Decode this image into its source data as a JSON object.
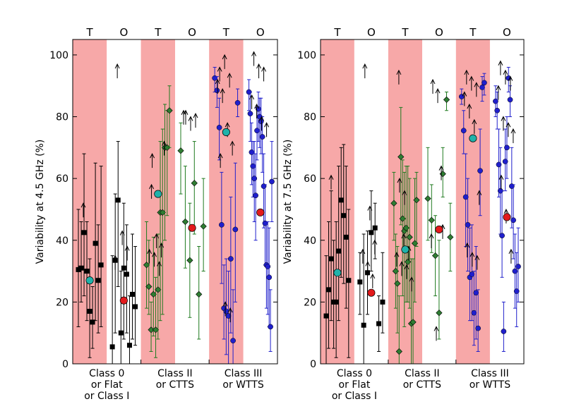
{
  "colors": {
    "shade": "#f7a8a8",
    "class0": "#000000",
    "class2": "#1f7a1f",
    "class2_marker": "#2e7d32",
    "class3": "#1f1fcc",
    "mean_class0": "#e31a1c",
    "mean_t": "#20b2aa",
    "arrow": "#000000"
  },
  "chart_data": [
    {
      "type": "scatter",
      "panel": "left",
      "ylabel": "Variability at 4.5 GHz (%)",
      "ylim": [
        0,
        105
      ],
      "yticks": [
        0,
        20,
        40,
        60,
        80,
        100
      ],
      "top_labels": [
        "T",
        "O",
        "T",
        "O",
        "T",
        "O"
      ],
      "groups": [
        {
          "label_lines": [
            "Class 0",
            "or Flat",
            "or Class I"
          ],
          "color_key": "class0",
          "marker": "square",
          "T_points": [
            {
              "y": 30.5,
              "lo": 12,
              "hi": 50
            },
            {
              "y": 31,
              "lo": 20,
              "hi": 46
            },
            {
              "y": 42.5,
              "lo": 22,
              "hi": 68
            },
            {
              "y": 30,
              "lo": 14,
              "hi": 46
            },
            {
              "y": 17,
              "lo": 2,
              "hi": 34
            },
            {
              "y": 13.5,
              "lo": 5,
              "hi": 25
            },
            {
              "y": 39,
              "lo": 14,
              "hi": 65
            },
            {
              "y": 27,
              "lo": 10,
              "hi": 45
            },
            {
              "y": 32,
              "lo": 12,
              "hi": 64
            }
          ],
          "T_arrows": [
            52
          ],
          "T_mean": 27,
          "O_points": [
            {
              "y": 5.5,
              "lo": 0,
              "hi": 35
            },
            {
              "y": 33.5,
              "lo": 10,
              "hi": 55
            },
            {
              "y": 53,
              "lo": 25,
              "hi": 72
            },
            {
              "y": 10,
              "lo": 0,
              "hi": 30
            },
            {
              "y": 31,
              "lo": 8,
              "hi": 52
            },
            {
              "y": 29,
              "lo": 10,
              "hi": 45
            },
            {
              "y": 6,
              "lo": 0,
              "hi": 22
            },
            {
              "y": 22.5,
              "lo": 8,
              "hi": 42
            },
            {
              "y": 18.5,
              "lo": 6,
              "hi": 38
            }
          ],
          "O_arrows": [
            97,
            43,
            38,
            35
          ],
          "O_mean": 20.5
        },
        {
          "label_lines": [
            "Class II",
            "or CTTS"
          ],
          "color_key": "class2",
          "marker": "diamond",
          "T_points": [
            {
              "y": 32,
              "lo": 18,
              "hi": 46
            },
            {
              "y": 25,
              "lo": 16,
              "hi": 40
            },
            {
              "y": 11,
              "lo": 4,
              "hi": 20
            },
            {
              "y": 22.5,
              "lo": 9,
              "hi": 41
            },
            {
              "y": 11,
              "lo": 2,
              "hi": 28
            },
            {
              "y": 24,
              "lo": 8,
              "hi": 42
            },
            {
              "y": 49,
              "lo": 14,
              "hi": 72
            },
            {
              "y": 49,
              "lo": 16,
              "hi": 76
            },
            {
              "y": 70,
              "lo": 40,
              "hi": 84
            },
            {
              "y": 70,
              "lo": 48,
              "hi": 82
            },
            {
              "y": 82,
              "lo": 70,
              "hi": 90
            }
          ],
          "T_arrows": [
            58,
            42,
            39,
            37,
            36,
            33,
            72,
            68
          ],
          "T_mean": 55,
          "O_points": [
            {
              "y": 69,
              "lo": 55,
              "hi": 78
            },
            {
              "y": 46,
              "lo": 31,
              "hi": 64
            },
            {
              "y": 33.5,
              "lo": 15,
              "hi": 52
            },
            {
              "y": 58.5,
              "lo": 42,
              "hi": 72
            },
            {
              "y": 22.5,
              "lo": 8,
              "hi": 38
            },
            {
              "y": 44.5,
              "lo": 30,
              "hi": 60
            }
          ],
          "O_arrows": [
            82,
            80,
            81,
            82
          ],
          "O_mean": 44
        },
        {
          "label_lines": [
            "Class III",
            "or WTTS"
          ],
          "color_key": "class3",
          "marker": "circle",
          "T_points": [
            {
              "y": 92.5,
              "lo": 88,
              "hi": 96
            },
            {
              "y": 88.5,
              "lo": 83,
              "hi": 93
            },
            {
              "y": 76.5,
              "lo": 66,
              "hi": 86
            },
            {
              "y": 45,
              "lo": 26,
              "hi": 62
            },
            {
              "y": 18,
              "lo": 8,
              "hi": 32
            },
            {
              "y": 17,
              "lo": 3,
              "hi": 34
            },
            {
              "y": 15.5,
              "lo": 0,
              "hi": 30
            },
            {
              "y": 34,
              "lo": 10,
              "hi": 54
            },
            {
              "y": 7.5,
              "lo": 0,
              "hi": 24
            },
            {
              "y": 43.5,
              "lo": 20,
              "hi": 65
            },
            {
              "y": 84.5,
              "lo": 80,
              "hi": 89
            }
          ],
          "T_arrows": [
            96,
            100,
            94,
            92,
            89,
            78,
            72,
            68,
            20,
            18
          ],
          "T_mean": 75,
          "O_points": [
            {
              "y": 88,
              "lo": 82,
              "hi": 92
            },
            {
              "y": 81,
              "lo": 72,
              "hi": 88
            },
            {
              "y": 68.5,
              "lo": 58,
              "hi": 78
            },
            {
              "y": 64,
              "lo": 54,
              "hi": 72
            },
            {
              "y": 60,
              "lo": 46,
              "hi": 72
            },
            {
              "y": 54.5,
              "lo": 40,
              "hi": 68
            },
            {
              "y": 75.5,
              "lo": 66,
              "hi": 83
            },
            {
              "y": 82.5,
              "lo": 72,
              "hi": 88
            },
            {
              "y": 80,
              "lo": 70,
              "hi": 86
            },
            {
              "y": 78.5,
              "lo": 68,
              "hi": 86
            },
            {
              "y": 73.5,
              "lo": 62,
              "hi": 80
            },
            {
              "y": 57.5,
              "lo": 44,
              "hi": 68
            },
            {
              "y": 45.5,
              "lo": 32,
              "hi": 58
            },
            {
              "y": 32,
              "lo": 18,
              "hi": 46
            },
            {
              "y": 31.5,
              "lo": 16,
              "hi": 46
            },
            {
              "y": 28,
              "lo": 12,
              "hi": 44
            },
            {
              "y": 12,
              "lo": 4,
              "hi": 24
            },
            {
              "y": 59,
              "lo": 46,
              "hi": 72
            }
          ],
          "O_arrows": [
            101,
            97,
            96,
            87,
            84,
            80,
            78
          ],
          "O_mean": 49
        }
      ]
    },
    {
      "type": "scatter",
      "panel": "right",
      "ylabel": "Variability at 7.5 GHz (%)",
      "ylim": [
        0,
        105
      ],
      "yticks": [
        0,
        20,
        40,
        60,
        80,
        100
      ],
      "top_labels": [
        "T",
        "O",
        "T",
        "O",
        "T",
        "O"
      ],
      "groups": [
        {
          "label_lines": [
            "Class 0",
            "or Flat",
            "or Class I"
          ],
          "color_key": "class0",
          "marker": "square",
          "T_points": [
            {
              "y": 15.5,
              "lo": 0,
              "hi": 35
            },
            {
              "y": 24,
              "lo": 5,
              "hi": 46
            },
            {
              "y": 34,
              "lo": 14,
              "hi": 56
            },
            {
              "y": 20,
              "lo": 5,
              "hi": 40
            },
            {
              "y": 20,
              "lo": 2,
              "hi": 46
            },
            {
              "y": 36.5,
              "lo": 14,
              "hi": 64
            },
            {
              "y": 53,
              "lo": 28,
              "hi": 70
            },
            {
              "y": 48,
              "lo": 26,
              "hi": 71
            },
            {
              "y": 41,
              "lo": 18,
              "hi": 64
            },
            {
              "y": 27,
              "lo": 2,
              "hi": 50
            }
          ],
          "T_arrows": [
            61
          ],
          "T_mean": 29.5,
          "O_points": [
            {
              "y": 26.5,
              "lo": 16,
              "hi": 36
            },
            {
              "y": 12.5,
              "lo": 0,
              "hi": 42
            },
            {
              "y": 29.5,
              "lo": 16,
              "hi": 43
            },
            {
              "y": 42.5,
              "lo": 30,
              "hi": 56
            },
            {
              "y": 44,
              "lo": 34,
              "hi": 52
            },
            {
              "y": 13,
              "lo": 4,
              "hi": 22
            },
            {
              "y": 20,
              "lo": 10,
              "hi": 36
            }
          ],
          "O_arrows": [
            97,
            51,
            40,
            37,
            33,
            29
          ],
          "O_mean": 23
        },
        {
          "label_lines": [
            "Class II",
            "or CTTS"
          ],
          "color_key": "class2",
          "marker": "diamond",
          "T_points": [
            {
              "y": 52,
              "lo": 40,
              "hi": 62
            },
            {
              "y": 30,
              "lo": 18,
              "hi": 42
            },
            {
              "y": 26,
              "lo": 10,
              "hi": 38
            },
            {
              "y": 4,
              "lo": 0,
              "hi": 22
            },
            {
              "y": 67,
              "lo": 45,
              "hi": 83
            },
            {
              "y": 47,
              "lo": 22,
              "hi": 66
            },
            {
              "y": 43,
              "lo": 12,
              "hi": 62
            },
            {
              "y": 44,
              "lo": 20,
              "hi": 64
            },
            {
              "y": 33,
              "lo": 20,
              "hi": 64
            },
            {
              "y": 41,
              "lo": 18,
              "hi": 60
            },
            {
              "y": 13,
              "lo": 0,
              "hi": 34
            },
            {
              "y": 13.5,
              "lo": 0,
              "hi": 34
            },
            {
              "y": 39,
              "lo": 20,
              "hi": 60
            },
            {
              "y": 53,
              "lo": 38,
              "hi": 62
            }
          ],
          "T_arrows": [
            95,
            42,
            38,
            36,
            33,
            32,
            28,
            60,
            56
          ],
          "T_mean": 37,
          "O_points": [
            {
              "y": 53.5,
              "lo": 40,
              "hi": 70
            },
            {
              "y": 46.5,
              "lo": 36,
              "hi": 58
            },
            {
              "y": 35,
              "lo": 22,
              "hi": 48
            },
            {
              "y": 16.5,
              "lo": 8,
              "hi": 40
            },
            {
              "y": 61.5,
              "lo": 54,
              "hi": 70
            },
            {
              "y": 85.5,
              "lo": 82,
              "hi": 88
            },
            {
              "y": 41,
              "lo": 30,
              "hi": 52
            }
          ],
          "O_arrows": [
            92,
            89,
            45,
            42,
            12,
            64
          ],
          "O_mean": 43.5
        },
        {
          "label_lines": [
            "Class III",
            "or WTTS"
          ],
          "color_key": "class3",
          "marker": "circle",
          "T_points": [
            {
              "y": 86.5,
              "lo": 84,
              "hi": 89
            },
            {
              "y": 75.5,
              "lo": 68,
              "hi": 82
            },
            {
              "y": 54,
              "lo": 38,
              "hi": 68
            },
            {
              "y": 45,
              "lo": 30,
              "hi": 60
            },
            {
              "y": 28,
              "lo": 14,
              "hi": 44
            },
            {
              "y": 29,
              "lo": 14,
              "hi": 45
            },
            {
              "y": 16.5,
              "lo": 6,
              "hi": 30
            },
            {
              "y": 23,
              "lo": 8,
              "hi": 38
            },
            {
              "y": 11.5,
              "lo": 4,
              "hi": 24
            },
            {
              "y": 62.5,
              "lo": 48,
              "hi": 76
            },
            {
              "y": 89.5,
              "lo": 85,
              "hi": 93
            },
            {
              "y": 91,
              "lo": 87,
              "hi": 94
            }
          ],
          "T_arrows": [
            95,
            93,
            91,
            88,
            84,
            79,
            56,
            39,
            36,
            35
          ],
          "T_mean": 73,
          "O_points": [
            {
              "y": 85,
              "lo": 80,
              "hi": 90
            },
            {
              "y": 82,
              "lo": 76,
              "hi": 88
            },
            {
              "y": 64.5,
              "lo": 54,
              "hi": 76
            },
            {
              "y": 56,
              "lo": 42,
              "hi": 70
            },
            {
              "y": 41.5,
              "lo": 28,
              "hi": 56
            },
            {
              "y": 10.5,
              "lo": 4,
              "hi": 20
            },
            {
              "y": 65.5,
              "lo": 56,
              "hi": 76
            },
            {
              "y": 70,
              "lo": 60,
              "hi": 80
            },
            {
              "y": 92.5,
              "lo": 88,
              "hi": 96
            },
            {
              "y": 85.5,
              "lo": 80,
              "hi": 90
            },
            {
              "y": 57.5,
              "lo": 44,
              "hi": 70
            },
            {
              "y": 46.5,
              "lo": 34,
              "hi": 58
            },
            {
              "y": 30,
              "lo": 18,
              "hi": 42
            },
            {
              "y": 23.5,
              "lo": 12,
              "hi": 36
            },
            {
              "y": 31.5,
              "lo": 20,
              "hi": 44
            }
          ],
          "O_arrows": [
            98,
            95,
            93,
            90,
            80,
            78,
            76,
            61,
            50,
            37
          ],
          "O_mean": 47.5
        }
      ]
    }
  ]
}
